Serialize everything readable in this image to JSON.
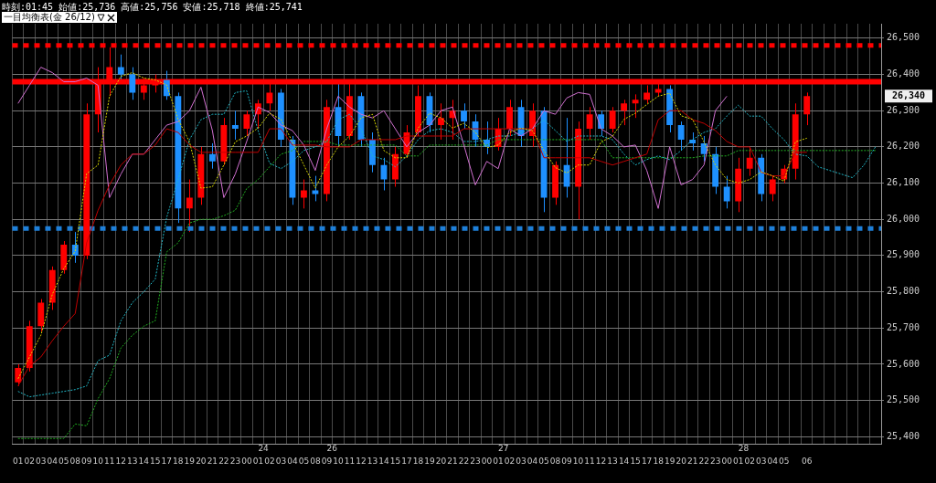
{
  "chart_data": {
    "type": "candlestick",
    "title": "時刻:01:45 始値:25,736 高値:25,756 安値:25,718 終値:25,741",
    "subtitle": "一目均衡表(金 26/12)",
    "categories": [
      "01",
      "02",
      "03",
      "04",
      "05",
      "08",
      "09",
      "10",
      "11",
      "12",
      "13",
      "14",
      "15",
      "17",
      "18",
      "19",
      "20",
      "21",
      "22",
      "23",
      "00",
      "01",
      "02",
      "03",
      "04",
      "05",
      "08",
      "09",
      "10",
      "11",
      "12",
      "13",
      "14",
      "15",
      "17",
      "18",
      "19",
      "20",
      "21",
      "22",
      "23",
      "00",
      "01",
      "02",
      "03",
      "04",
      "05",
      "08",
      "09",
      "10",
      "11",
      "12",
      "13",
      "14",
      "15",
      "17",
      "18",
      "19",
      "20",
      "21",
      "22",
      "23",
      "00",
      "01",
      "02",
      "03",
      "04",
      "05",
      null,
      "06",
      null,
      null,
      null,
      null,
      null,
      null
    ],
    "ohlc": [
      [
        25550,
        25600,
        25540,
        25590
      ],
      [
        25590,
        25720,
        25580,
        25705
      ],
      [
        25705,
        25780,
        25690,
        25770
      ],
      [
        25770,
        25870,
        25750,
        25860
      ],
      [
        25860,
        25940,
        25850,
        25930
      ],
      [
        25930,
        25965,
        25880,
        25900
      ],
      [
        25900,
        26320,
        25890,
        26290
      ],
      [
        26290,
        26420,
        26240,
        26380
      ],
      [
        26380,
        26475,
        26340,
        26420
      ],
      [
        26420,
        26455,
        26380,
        26400
      ],
      [
        26400,
        26420,
        26330,
        26350
      ],
      [
        26350,
        26390,
        26330,
        26370
      ],
      [
        26370,
        26400,
        26350,
        26385
      ],
      [
        26385,
        26410,
        26330,
        26340
      ],
      [
        26340,
        26350,
        25990,
        26030
      ],
      [
        26030,
        26110,
        25965,
        26060
      ],
      [
        26060,
        26200,
        26040,
        26180
      ],
      [
        26180,
        26210,
        26140,
        26160
      ],
      [
        26160,
        26280,
        26150,
        26260
      ],
      [
        26260,
        26300,
        26220,
        26250
      ],
      [
        26250,
        26300,
        26230,
        26290
      ],
      [
        26290,
        26330,
        26250,
        26320
      ],
      [
        26320,
        26375,
        26300,
        26350
      ],
      [
        26350,
        26360,
        26200,
        26220
      ],
      [
        26220,
        26230,
        26040,
        26060
      ],
      [
        26060,
        26110,
        26030,
        26080
      ],
      [
        26080,
        26120,
        26050,
        26070
      ],
      [
        26070,
        26330,
        26050,
        26310
      ],
      [
        26310,
        26375,
        26200,
        26230
      ],
      [
        26230,
        26380,
        26220,
        26340
      ],
      [
        26340,
        26350,
        26200,
        26220
      ],
      [
        26220,
        26240,
        26130,
        26150
      ],
      [
        26150,
        26170,
        26080,
        26110
      ],
      [
        26110,
        26200,
        26090,
        26180
      ],
      [
        26180,
        26260,
        26170,
        26240
      ],
      [
        26240,
        26370,
        26230,
        26340
      ],
      [
        26340,
        26350,
        26240,
        26260
      ],
      [
        26260,
        26320,
        26220,
        26280
      ],
      [
        26280,
        26330,
        26220,
        26300
      ],
      [
        26300,
        26320,
        26250,
        26270
      ],
      [
        26270,
        26290,
        26200,
        26220
      ],
      [
        26220,
        26270,
        26180,
        26200
      ],
      [
        26200,
        26280,
        26190,
        26250
      ],
      [
        26250,
        26330,
        26230,
        26310
      ],
      [
        26310,
        26330,
        26200,
        26230
      ],
      [
        26230,
        26320,
        26200,
        26300
      ],
      [
        26300,
        26310,
        26020,
        26060
      ],
      [
        26060,
        26160,
        26040,
        26150
      ],
      [
        26150,
        26280,
        26060,
        26090
      ],
      [
        26090,
        26270,
        26000,
        26250
      ],
      [
        26250,
        26310,
        26220,
        26290
      ],
      [
        26290,
        26300,
        26230,
        26250
      ],
      [
        26250,
        26310,
        26240,
        26300
      ],
      [
        26300,
        26330,
        26260,
        26320
      ],
      [
        26320,
        26345,
        26280,
        26330
      ],
      [
        26330,
        26370,
        26320,
        26350
      ],
      [
        26350,
        26375,
        26340,
        26360
      ],
      [
        26360,
        26370,
        26240,
        26260
      ],
      [
        26260,
        26270,
        26190,
        26220
      ],
      [
        26220,
        26240,
        26190,
        26210
      ],
      [
        26210,
        26230,
        26160,
        26180
      ],
      [
        26180,
        26200,
        26070,
        26090
      ],
      [
        26090,
        26120,
        26030,
        26050
      ],
      [
        26050,
        26170,
        26020,
        26140
      ],
      [
        26140,
        26200,
        26120,
        26170
      ],
      [
        26170,
        26180,
        26050,
        26070
      ],
      [
        26070,
        26120,
        26050,
        26110
      ],
      [
        26110,
        26150,
        26100,
        26140
      ],
      [
        26140,
        26320,
        26110,
        26290
      ],
      [
        26290,
        26350,
        26260,
        26340
      ],
      null,
      null,
      null,
      null,
      null,
      null
    ],
    "colors": [
      "#ff0000",
      "#ff0000",
      "#ff0000",
      "#ff0000",
      "#ff0000",
      "#1e90ff",
      "#ff0000",
      "#ff0000",
      "#ff0000",
      "#1e90ff",
      "#1e90ff",
      "#ff0000",
      "#ff0000",
      "#1e90ff",
      "#1e90ff",
      "#ff0000",
      "#ff0000",
      "#1e90ff",
      "#ff0000",
      "#1e90ff",
      "#ff0000",
      "#ff0000",
      "#ff0000",
      "#1e90ff",
      "#1e90ff",
      "#ff0000",
      "#1e90ff",
      "#ff0000",
      "#1e90ff",
      "#ff0000",
      "#1e90ff",
      "#1e90ff",
      "#1e90ff",
      "#ff0000",
      "#ff0000",
      "#ff0000",
      "#1e90ff",
      "#ff0000",
      "#ff0000",
      "#1e90ff",
      "#1e90ff",
      "#1e90ff",
      "#ff0000",
      "#ff0000",
      "#1e90ff",
      "#ff0000",
      "#1e90ff",
      "#ff0000",
      "#1e90ff",
      "#ff0000",
      "#ff0000",
      "#1e90ff",
      "#ff0000",
      "#ff0000",
      "#ff0000",
      "#ff0000",
      "#ff0000",
      "#1e90ff",
      "#1e90ff",
      "#1e90ff",
      "#1e90ff",
      "#1e90ff",
      "#1e90ff",
      "#ff0000",
      "#ff0000",
      "#1e90ff",
      "#ff0000",
      "#ff0000",
      "#ff0000",
      "#ff0000",
      null,
      null,
      null,
      null,
      null,
      null
    ],
    "series": [
      {
        "type": "line",
        "color": "#d8d800",
        "line_style": "dotted",
        "values": [
          25560,
          25620,
          25680,
          25793,
          25864,
          25912,
          26126,
          26150,
          26340,
          26395,
          26405,
          26390,
          26385,
          26371,
          26276,
          26214,
          26086,
          26090,
          26150,
          26214,
          26230,
          26252,
          26293,
          26276,
          26214,
          26150,
          26086,
          26150,
          26200,
          26230,
          26280,
          26290,
          26190,
          26170,
          26170,
          26252,
          26293,
          26280,
          26252,
          26265,
          26240,
          26198,
          26205,
          26240,
          26252,
          26245,
          26190,
          26143,
          26128,
          26150,
          26150,
          26214,
          26229,
          26276,
          26293,
          26317,
          26340,
          26348,
          26286,
          26276,
          26214,
          26150,
          26110,
          26100,
          26110,
          26131,
          26120,
          26105,
          26214,
          26224,
          null,
          null,
          null,
          null,
          null,
          null
        ]
      },
      {
        "type": "line",
        "color": "#c00000",
        "line_style": "solid",
        "values": [
          25540,
          25595,
          25620,
          25665,
          25705,
          25740,
          25935,
          26025,
          26095,
          26150,
          26180,
          26180,
          26205,
          26250,
          26240,
          26205,
          26185,
          26185,
          26185,
          26185,
          26185,
          26185,
          26250,
          26250,
          26205,
          26205,
          26205,
          26200,
          26200,
          26200,
          26220,
          26220,
          26220,
          26220,
          26230,
          26230,
          26230,
          26230,
          26230,
          26250,
          26250,
          26250,
          26250,
          26250,
          26250,
          26250,
          26170,
          26170,
          26170,
          26170,
          26170,
          26160,
          26150,
          26160,
          26170,
          26180,
          26275,
          26300,
          26300,
          26275,
          26265,
          26245,
          26215,
          26200,
          26200,
          26130,
          26120,
          26120,
          26185,
          26185,
          null,
          null,
          null,
          null,
          null,
          null
        ]
      },
      {
        "type": "line",
        "color": "#d070d0",
        "line_style": "solid",
        "values": [
          26320,
          26370,
          26420,
          26405,
          26380,
          26380,
          26390,
          26370,
          26060,
          26125,
          26180,
          26180,
          26220,
          26260,
          26270,
          26300,
          26365,
          26245,
          26060,
          26125,
          26215,
          26310,
          26295,
          26260,
          26245,
          26205,
          26135,
          26250,
          26340,
          26310,
          26290,
          26280,
          26300,
          26250,
          26200,
          26240,
          26260,
          26300,
          26310,
          26205,
          26095,
          26160,
          26140,
          26250,
          26230,
          26250,
          26300,
          26290,
          26335,
          26350,
          26345,
          26250,
          26230,
          26200,
          26205,
          26135,
          26030,
          26200,
          26095,
          26110,
          26150,
          26300,
          26340,
          null,
          null,
          null,
          null,
          null,
          null,
          null,
          null,
          null,
          null,
          null,
          null,
          null
        ]
      },
      {
        "type": "line",
        "color": "#20b8c8",
        "line_style": "dotted",
        "values": [
          25525,
          25510,
          25515,
          25520,
          25525,
          25530,
          25540,
          25610,
          25625,
          25720,
          25770,
          25800,
          25835,
          26005,
          26110,
          26220,
          26275,
          26290,
          26290,
          26350,
          26355,
          26245,
          26155,
          26140,
          26160,
          26190,
          26200,
          26215,
          26275,
          26290,
          26250,
          26175,
          26165,
          26145,
          26175,
          26220,
          26245,
          26250,
          26240,
          26215,
          26215,
          26220,
          26230,
          26230,
          26240,
          26250,
          26275,
          26245,
          26215,
          26230,
          26230,
          26230,
          26220,
          26180,
          26150,
          26165,
          26175,
          26165,
          26190,
          26220,
          26240,
          26250,
          26285,
          26315,
          26285,
          26285,
          26250,
          26220,
          26180,
          26175,
          26145,
          26135,
          26125,
          26115,
          26150,
          26200
        ]
      },
      {
        "type": "line",
        "color": "#20b020",
        "line_style": "dotted",
        "values": [
          25395,
          25395,
          25395,
          25395,
          25395,
          25435,
          25430,
          25505,
          25560,
          25645,
          25680,
          25705,
          25720,
          25910,
          25935,
          25990,
          26000,
          26000,
          26010,
          26025,
          26085,
          26110,
          26145,
          26180,
          26190,
          26215,
          26215,
          26215,
          26205,
          26205,
          26205,
          26205,
          26205,
          26205,
          26175,
          26175,
          26205,
          26205,
          26205,
          26205,
          26205,
          26205,
          26220,
          26220,
          26220,
          26220,
          26220,
          26220,
          26220,
          26220,
          26220,
          26220,
          26170,
          26170,
          26170,
          26170,
          26170,
          26170,
          26170,
          26170,
          26175,
          26175,
          26175,
          26190,
          26190,
          26190,
          26190,
          26190,
          26190,
          26190,
          26190,
          26190,
          26190,
          26190,
          26190,
          26190
        ]
      }
    ],
    "ref_lines": [
      {
        "axis": "y",
        "value": 26480,
        "color": "#ff0000",
        "line_style": "dotted"
      },
      {
        "axis": "y",
        "value": 26380,
        "color": "#ff0000",
        "line_style": "solid"
      },
      {
        "axis": "y",
        "value": 25975,
        "color": "#1e7fd8",
        "line_style": "dotted"
      }
    ],
    "annotations": [
      "24",
      "26",
      "27",
      "28",
      "26,340"
    ],
    "ylim": [
      25380,
      26540
    ],
    "yticks": [
      {
        "value": 25400,
        "label": "25,400"
      },
      {
        "value": 25500,
        "label": "25,500"
      },
      {
        "value": 25600,
        "label": "25,600"
      },
      {
        "value": 25700,
        "label": "25,700"
      },
      {
        "value": 25800,
        "label": "25,800"
      },
      {
        "value": 25900,
        "label": "25,900"
      },
      {
        "value": 26000,
        "label": "26,000"
      },
      {
        "value": 26100,
        "label": "26,100"
      },
      {
        "value": 26200,
        "label": "26,200"
      },
      {
        "value": 26300,
        "label": "26,300"
      },
      {
        "value": 26400,
        "label": "26,400"
      },
      {
        "value": 26500,
        "label": "26,500"
      }
    ],
    "grid": true,
    "legend": false
  }
}
